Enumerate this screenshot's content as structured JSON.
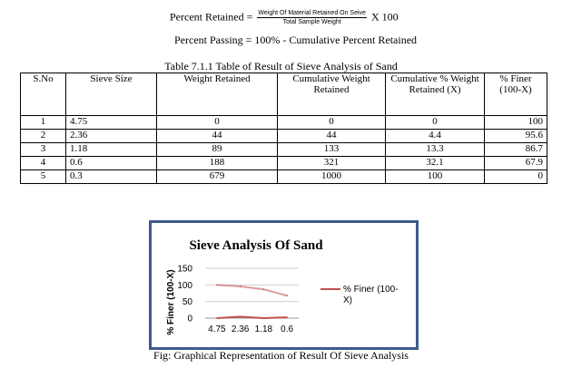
{
  "formulas": {
    "retained_label": "Percent Retained =",
    "retained_numerator": "Weight Of Material Retained On Seive",
    "retained_denominator": "Total Sample Weight",
    "retained_multiplier": "X 100",
    "passing": "Percent Passing = 100% - Cumulative Percent Retained"
  },
  "table": {
    "caption": "Table 7.1.1 Table of Result of Sieve Analysis of Sand",
    "headers": [
      "S.No",
      "Sieve Size",
      "Weight Retained",
      "Cumulative Weight Retained",
      "Cumulative % Weight Retained (X)",
      "% Finer (100-X)"
    ],
    "rows": [
      [
        "1",
        "4.75",
        "0",
        "0",
        "0",
        "100"
      ],
      [
        "2",
        "2.36",
        "44",
        "44",
        "4.4",
        "95.6"
      ],
      [
        "3",
        "1.18",
        "89",
        "133",
        "13.3",
        "86.7"
      ],
      [
        "4",
        "0.6",
        "188",
        "321",
        "32.1",
        "67.9"
      ],
      [
        "5",
        "0.3",
        "679",
        "1000",
        "100",
        "0"
      ]
    ]
  },
  "chart_data": {
    "type": "line",
    "title": "Sieve Analysis Of Sand",
    "xlabel": "",
    "ylabel": "% Finer (100-X)",
    "categories": [
      "4.75",
      "2.36",
      "1.18",
      "0.6"
    ],
    "y_ticks": [
      "0",
      "50",
      "100",
      "150"
    ],
    "ylim": [
      0,
      150
    ],
    "grid": true,
    "legend_position": "right",
    "series": [
      {
        "name": "% Finer (100-X)",
        "color": "#c0504d",
        "values": [
          100,
          95.6,
          86.7,
          67.9
        ]
      },
      {
        "name": "",
        "color": "#c0504d",
        "values": [
          0,
          4.4,
          0,
          2.5
        ]
      }
    ]
  },
  "figure_caption": "Fig: Graphical Representation of Result Of Sieve Analysis"
}
